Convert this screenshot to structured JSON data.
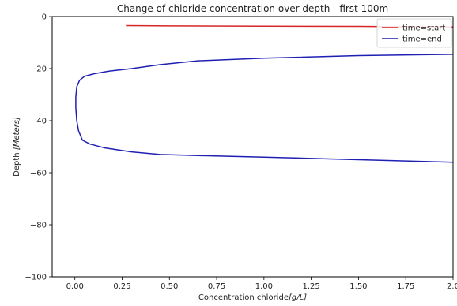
{
  "chart_data": {
    "type": "line",
    "title": "Change of chloride concentration over depth - first 100m",
    "xlabel_prefix": "Concentration chloride",
    "xlabel_unit": "[g/L]",
    "ylabel_prefix": "Depth",
    "ylabel_unit": "[Meters]",
    "xlim": [
      -0.12,
      2.0
    ],
    "ylim": [
      -100,
      0
    ],
    "x_ticks": [
      0.0,
      0.25,
      0.5,
      0.75,
      1.0,
      1.25,
      1.5,
      1.75,
      2.0
    ],
    "x_tick_labels": [
      "0.00",
      "0.25",
      "0.50",
      "0.75",
      "1.00",
      "1.25",
      "1.50",
      "1.75",
      "2.0"
    ],
    "y_ticks": [
      0,
      -20,
      -40,
      -60,
      -80,
      -100
    ],
    "y_tick_labels": [
      "0",
      "−20",
      "−40",
      "−60",
      "−80",
      "−100"
    ],
    "grid": false,
    "legend_position": "top-right",
    "series": [
      {
        "name": "time=start",
        "color": "#d62728",
        "x": [
          0.27,
          0.5,
          1.0,
          1.5,
          1.75,
          2.0
        ],
        "y": [
          -3.5,
          -3.6,
          -3.7,
          -3.8,
          -3.9,
          -4.0
        ]
      },
      {
        "name": "time=end",
        "color": "#1f1fb4",
        "x": [
          2.0,
          1.5,
          1.0,
          0.65,
          0.45,
          0.3,
          0.18,
          0.1,
          0.05,
          0.025,
          0.01,
          0.005,
          0.005,
          0.01,
          0.02,
          0.04,
          0.08,
          0.16,
          0.3,
          0.45,
          0.7,
          1.0,
          1.5,
          1.75,
          2.0
        ],
        "y": [
          -14.5,
          -15.0,
          -16.0,
          -17.0,
          -18.5,
          -20.0,
          -21.0,
          -22.0,
          -23.0,
          -24.5,
          -27.0,
          -31.0,
          -35.0,
          -40.0,
          -44.0,
          -47.5,
          -49.0,
          -50.5,
          -52.0,
          -53.0,
          -53.5,
          -54.0,
          -55.0,
          -55.5,
          -56.0
        ]
      }
    ]
  }
}
